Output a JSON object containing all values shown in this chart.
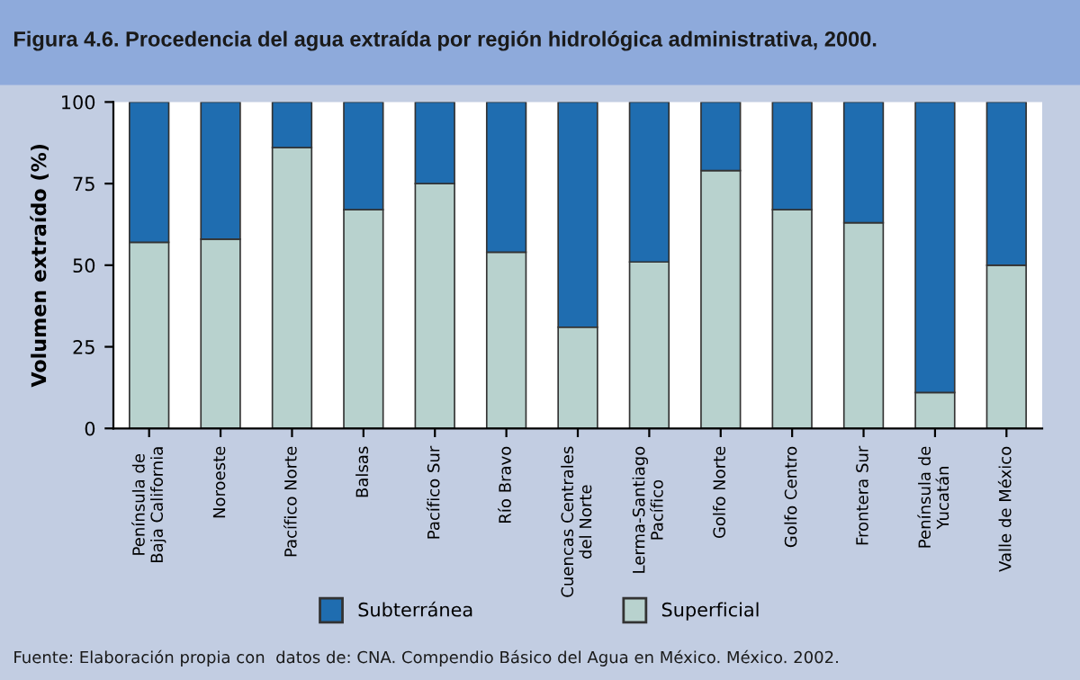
{
  "chart_data": {
    "type": "bar",
    "title": "Figura 4.6. Procedencia del agua extraída por región hidrológica administrativa, 2000.",
    "ylabel": "Volumen extraído (%)",
    "categories": [
      "Península de\nBaja California",
      "Noroeste",
      "Pacífico Norte",
      "Balsas",
      "Pacífico Sur",
      "Río Bravo",
      "Cuencas Centrales\ndel Norte",
      "Lerma-Santiago\nPacífico",
      "Golfo Norte",
      "Golfo Centro",
      "Frontera Sur",
      "Península de\nYucatán",
      "Valle de México"
    ],
    "stacked": true,
    "series": [
      {
        "name": "Superficial",
        "color": "#b8d2ce",
        "values": [
          57,
          58,
          86,
          67,
          75,
          54,
          31,
          51,
          79,
          67,
          63,
          11,
          50
        ]
      },
      {
        "name": "Subterránea",
        "color": "#1f6db0",
        "values": [
          43,
          42,
          14,
          33,
          25,
          46,
          69,
          49,
          21,
          33,
          37,
          89,
          50
        ]
      }
    ],
    "ylim": [
      0,
      100
    ],
    "yticks": [
      0,
      25,
      50,
      75,
      100
    ],
    "grid": false,
    "legend": "bottom",
    "annotations": [
      "Fuente: Elaboración propia con  datos de: CNA. Compendio Básico del Agua en México. México. 2002."
    ]
  }
}
